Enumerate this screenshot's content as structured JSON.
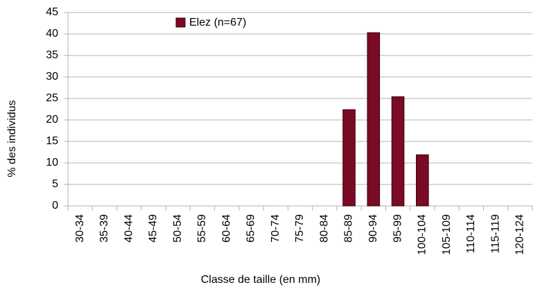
{
  "chart_data": {
    "type": "bar",
    "x_label": "Classe de taille (en mm)",
    "y_label": "% des individus",
    "categories": [
      "30-34",
      "35-39",
      "40-44",
      "45-49",
      "50-54",
      "55-59",
      "60-64",
      "65-69",
      "70-74",
      "75-79",
      "80-84",
      "85-89",
      "90-94",
      "95-99",
      "100-104",
      "105-109",
      "110-114",
      "115-119",
      "120-124"
    ],
    "series": [
      {
        "name": "Elez (n=67)",
        "color": "#7b0a25",
        "values": [
          0,
          0,
          0,
          0,
          0,
          0,
          0,
          0,
          0,
          0,
          0,
          22.4,
          40.3,
          25.4,
          11.9,
          0,
          0,
          0,
          0
        ]
      }
    ],
    "ylim": [
      0,
      45
    ],
    "yticks": [
      0,
      5,
      10,
      15,
      20,
      25,
      30,
      35,
      40,
      45
    ],
    "grid": true
  }
}
